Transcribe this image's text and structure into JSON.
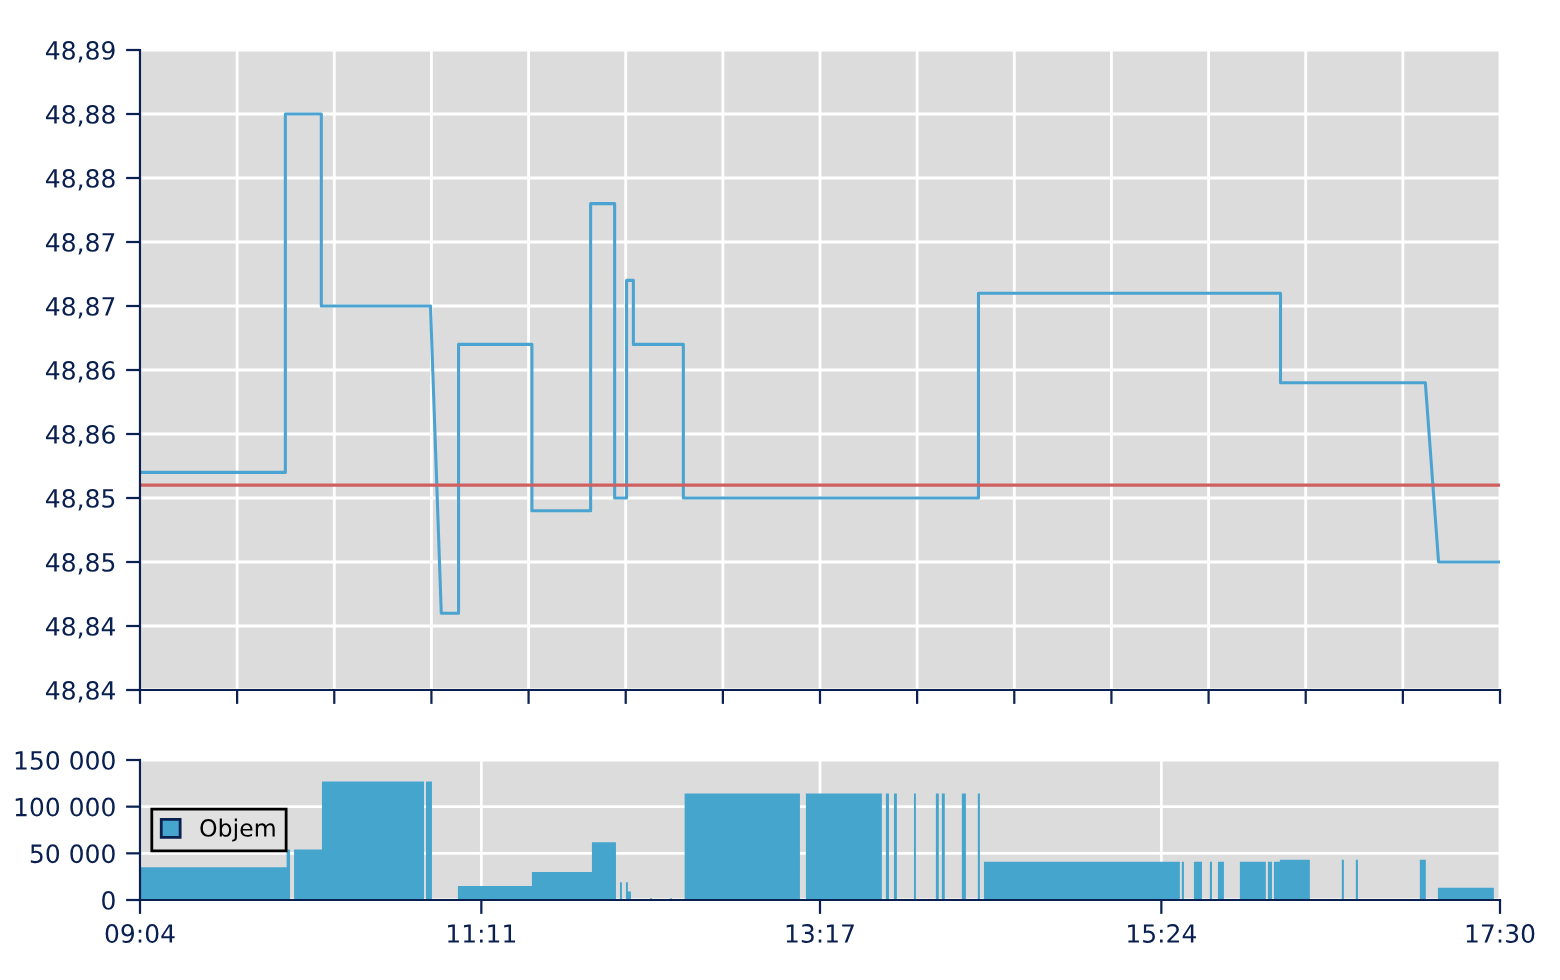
{
  "chart_data": [
    {
      "type": "line",
      "marker": "none",
      "grid": true,
      "tick_labels": "y",
      "series": [
        {
          "color": "#4aa3d0",
          "x": [
            9.0667,
            9.968,
            9.968,
            10.191,
            10.191,
            10.868,
            10.935,
            11.042,
            11.042,
            11.497,
            11.497,
            11.861,
            11.861,
            12.01,
            12.01,
            12.084,
            12.084,
            12.126,
            12.126,
            12.436,
            12.436,
            14.266,
            14.266,
            16.139,
            16.139,
            17.037,
            17.119,
            17.5
          ],
          "values": [
            48.857,
            48.857,
            48.885,
            48.885,
            48.87,
            48.87,
            48.846,
            48.846,
            48.867,
            48.867,
            48.854,
            48.854,
            48.878,
            48.878,
            48.855,
            48.855,
            48.872,
            48.872,
            48.867,
            48.867,
            48.855,
            48.855,
            48.871,
            48.871,
            48.864,
            48.864,
            48.85,
            48.85
          ]
        }
      ],
      "ref_lines": [
        {
          "axis": "y",
          "value": 48.856,
          "color": "#d06060"
        }
      ],
      "xlim": [
        9.0667,
        17.5
      ],
      "xticks": [
        {
          "value": 9.0667,
          "label": null
        },
        {
          "value": 9.669,
          "label": null
        },
        {
          "value": 10.2714,
          "label": null
        },
        {
          "value": 10.8738,
          "label": null
        },
        {
          "value": 11.4762,
          "label": null
        },
        {
          "value": 12.0786,
          "label": null
        },
        {
          "value": 12.681,
          "label": null
        },
        {
          "value": 13.2833,
          "label": null
        },
        {
          "value": 13.8857,
          "label": null
        },
        {
          "value": 14.4881,
          "label": null
        },
        {
          "value": 15.0905,
          "label": null
        },
        {
          "value": 15.6929,
          "label": null
        },
        {
          "value": 16.2952,
          "label": null
        },
        {
          "value": 16.8976,
          "label": null
        },
        {
          "value": 17.5,
          "label": null
        }
      ],
      "ylim": [
        48.84,
        48.89
      ],
      "yticks": [
        {
          "value": 48.84,
          "label": "48,84"
        },
        {
          "value": 48.845,
          "label": "48,84"
        },
        {
          "value": 48.85,
          "label": "48,85"
        },
        {
          "value": 48.855,
          "label": "48,85"
        },
        {
          "value": 48.86,
          "label": "48,86"
        },
        {
          "value": 48.865,
          "label": "48,86"
        },
        {
          "value": 48.87,
          "label": "48,87"
        },
        {
          "value": 48.875,
          "label": "48,87"
        },
        {
          "value": 48.88,
          "label": "48,88"
        },
        {
          "value": 48.885,
          "label": "48,88"
        },
        {
          "value": 48.89,
          "label": "48,89"
        }
      ]
    },
    {
      "type": "area",
      "grid": true,
      "legend": "left",
      "series": [
        {
          "name": "Objem",
          "color": "#45a5cd",
          "x": [
            9.0667,
            9.976,
            9.976,
            9.997,
            9.997,
            10.022,
            10.022,
            10.195,
            10.195,
            10.828,
            10.828,
            10.84,
            10.84,
            10.877,
            10.877,
            11.038,
            11.038,
            11.497,
            11.497,
            11.869,
            11.869,
            12.018,
            12.018,
            12.043,
            12.043,
            12.055,
            12.055,
            12.08,
            12.08,
            12.092,
            12.092,
            12.111,
            12.111,
            12.229,
            12.229,
            12.241,
            12.241,
            12.353,
            12.353,
            12.365,
            12.365,
            12.444,
            12.444,
            13.159,
            13.159,
            13.196,
            13.196,
            13.667,
            13.667,
            13.692,
            13.692,
            13.711,
            13.711,
            13.742,
            13.742,
            13.76,
            13.76,
            13.866,
            13.866,
            13.878,
            13.878,
            14.002,
            14.002,
            14.02,
            14.02,
            14.039,
            14.039,
            14.057,
            14.057,
            14.163,
            14.163,
            14.188,
            14.188,
            14.262,
            14.262,
            14.275,
            14.275,
            14.3,
            14.3,
            15.515,
            15.515,
            15.527,
            15.527,
            15.54,
            15.54,
            15.602,
            15.602,
            15.652,
            15.652,
            15.701,
            15.701,
            15.714,
            15.714,
            15.751,
            15.751,
            15.788,
            15.788,
            15.887,
            15.887,
            16.048,
            16.048,
            16.061,
            16.061,
            16.086,
            16.086,
            16.098,
            16.098,
            16.135,
            16.135,
            16.321,
            16.321,
            16.519,
            16.519,
            16.532,
            16.532,
            16.606,
            16.606,
            16.619,
            16.619,
            17.003,
            17.003,
            17.04,
            17.04,
            17.115,
            17.115,
            17.462
          ],
          "values": [
            35000,
            35000,
            54000,
            54000,
            0,
            0,
            54000,
            54000,
            127000,
            127000,
            0,
            0,
            127000,
            127000,
            0,
            0,
            15000,
            15000,
            30000,
            30000,
            62000,
            62000,
            0,
            0,
            19000,
            19000,
            0,
            0,
            19000,
            19000,
            9000,
            9000,
            0,
            0,
            2000,
            2000,
            0,
            0,
            2000,
            2000,
            0,
            0,
            114000,
            114000,
            0,
            0,
            114000,
            114000,
            0,
            0,
            114000,
            114000,
            0,
            0,
            114000,
            114000,
            0,
            0,
            114000,
            114000,
            0,
            0,
            114000,
            114000,
            0,
            0,
            114000,
            114000,
            0,
            0,
            114000,
            114000,
            0,
            0,
            114000,
            114000,
            0,
            0,
            41000,
            41000,
            0,
            0,
            41000,
            41000,
            0,
            0,
            41000,
            41000,
            0,
            0,
            41000,
            41000,
            0,
            0,
            41000,
            41000,
            0,
            0,
            41000,
            41000,
            0,
            0,
            41000,
            41000,
            0,
            0,
            41000,
            41000,
            43000,
            43000,
            0,
            0,
            43000,
            43000,
            0,
            0,
            43000,
            43000,
            0,
            0,
            43000,
            43000,
            0,
            0,
            13000,
            13000
          ]
        }
      ],
      "xlim": [
        9.0667,
        17.5
      ],
      "xticks": [
        {
          "value": 9.0667,
          "label": "09:04"
        },
        {
          "value": 11.1833,
          "label": "11:11"
        },
        {
          "value": 13.2833,
          "label": "13:17"
        },
        {
          "value": 15.4,
          "label": "15:24"
        },
        {
          "value": 17.5,
          "label": "17:30"
        }
      ],
      "ylim": [
        0,
        150000
      ],
      "yticks": [
        {
          "value": 0,
          "label": "0"
        },
        {
          "value": 50000,
          "label": "50 000"
        },
        {
          "value": 100000,
          "label": "100 000"
        },
        {
          "value": 150000,
          "label": "150 000"
        }
      ]
    }
  ]
}
